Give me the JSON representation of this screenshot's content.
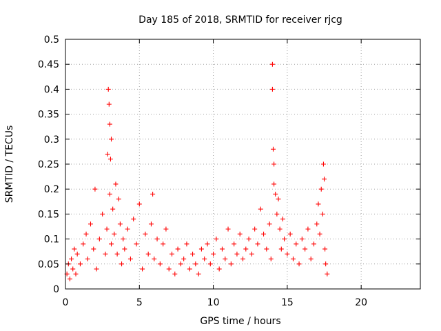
{
  "chart_data": {
    "type": "scatter",
    "title": "Day 185 of 2018, SRMTID for receiver rjcg",
    "xlabel": "GPS time / hours",
    "ylabel": "SRMTID / TECUs",
    "xlim": [
      0,
      24
    ],
    "ylim": [
      0,
      0.5
    ],
    "xticks": [
      0,
      5,
      10,
      15,
      20
    ],
    "yticks": [
      0,
      0.05,
      0.1,
      0.15,
      0.2,
      0.25,
      0.3,
      0.35,
      0.4,
      0.45,
      0.5
    ],
    "xtick_labels": [
      "0",
      "5",
      "10",
      "15",
      "20"
    ],
    "ytick_labels": [
      "0",
      "0.05",
      "0.1",
      "0.15",
      "0.2",
      "0.25",
      "0.3",
      "0.35",
      "0.4",
      "0.45",
      "0.5"
    ],
    "grid": true,
    "marker": "+",
    "color": "#ff0000",
    "series": [
      {
        "name": "SRMTID",
        "x": [
          0.1,
          0.2,
          0.3,
          0.4,
          0.5,
          0.6,
          0.7,
          0.8,
          1.0,
          1.2,
          1.4,
          1.5,
          1.7,
          1.9,
          2.0,
          2.1,
          2.3,
          2.5,
          2.7,
          2.8,
          2.85,
          2.9,
          2.95,
          3.0,
          3.0,
          3.05,
          3.1,
          3.1,
          3.2,
          3.3,
          3.4,
          3.5,
          3.6,
          3.7,
          3.8,
          3.9,
          4.0,
          4.2,
          4.4,
          4.6,
          4.8,
          5.0,
          5.2,
          5.4,
          5.6,
          5.8,
          5.9,
          6.0,
          6.2,
          6.4,
          6.6,
          6.8,
          7.0,
          7.2,
          7.4,
          7.6,
          7.8,
          8.0,
          8.2,
          8.4,
          8.6,
          8.8,
          9.0,
          9.2,
          9.4,
          9.6,
          9.8,
          10.0,
          10.2,
          10.4,
          10.6,
          10.8,
          11.0,
          11.2,
          11.4,
          11.6,
          11.8,
          12.0,
          12.2,
          12.4,
          12.6,
          12.8,
          13.0,
          13.2,
          13.4,
          13.6,
          13.8,
          13.9,
          14.0,
          14.0,
          14.05,
          14.1,
          14.1,
          14.2,
          14.3,
          14.4,
          14.5,
          14.6,
          14.7,
          14.8,
          15.0,
          15.2,
          15.4,
          15.6,
          15.8,
          16.0,
          16.2,
          16.4,
          16.6,
          16.8,
          17.0,
          17.1,
          17.2,
          17.3,
          17.4,
          17.45,
          17.5,
          17.55,
          17.6,
          17.7
        ],
        "y": [
          0.03,
          0.05,
          0.02,
          0.06,
          0.04,
          0.08,
          0.03,
          0.07,
          0.05,
          0.09,
          0.11,
          0.06,
          0.13,
          0.08,
          0.2,
          0.04,
          0.1,
          0.15,
          0.07,
          0.12,
          0.27,
          0.4,
          0.37,
          0.33,
          0.19,
          0.26,
          0.3,
          0.09,
          0.16,
          0.11,
          0.21,
          0.07,
          0.18,
          0.13,
          0.05,
          0.1,
          0.08,
          0.12,
          0.06,
          0.14,
          0.09,
          0.17,
          0.04,
          0.11,
          0.07,
          0.13,
          0.19,
          0.06,
          0.1,
          0.05,
          0.09,
          0.12,
          0.04,
          0.07,
          0.03,
          0.08,
          0.05,
          0.06,
          0.09,
          0.04,
          0.07,
          0.05,
          0.03,
          0.08,
          0.06,
          0.09,
          0.05,
          0.07,
          0.1,
          0.04,
          0.08,
          0.06,
          0.12,
          0.05,
          0.09,
          0.07,
          0.11,
          0.06,
          0.08,
          0.1,
          0.07,
          0.12,
          0.09,
          0.16,
          0.11,
          0.08,
          0.13,
          0.06,
          0.45,
          0.4,
          0.28,
          0.25,
          0.21,
          0.19,
          0.15,
          0.18,
          0.12,
          0.08,
          0.14,
          0.1,
          0.07,
          0.11,
          0.06,
          0.09,
          0.05,
          0.1,
          0.08,
          0.12,
          0.06,
          0.09,
          0.13,
          0.17,
          0.11,
          0.2,
          0.15,
          0.25,
          0.22,
          0.08,
          0.05,
          0.03
        ]
      }
    ]
  }
}
